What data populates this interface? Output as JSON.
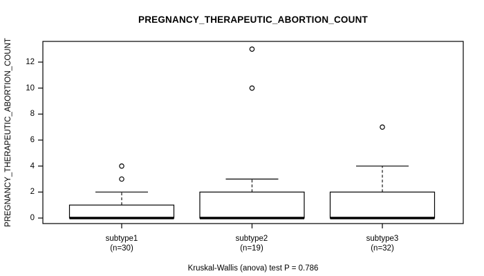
{
  "chart_data": {
    "type": "boxplot",
    "title": "PREGNANCY_THERAPEUTIC_ABORTION_COUNT",
    "ylabel": "PREGNANCY_THERAPEUTIC_ABORTION_COUNT",
    "xlabel": "",
    "caption": "Kruskal-Wallis (anova) test P = 0.786",
    "yticks": [
      0,
      2,
      4,
      6,
      8,
      10,
      12
    ],
    "ylim": [
      -0.5,
      13.5
    ],
    "grid": false,
    "legend": false,
    "groups": [
      {
        "label": "subtype1",
        "n_label": "(n=30)",
        "n": 30,
        "q1": 0,
        "median": 0,
        "q3": 1,
        "whisker_low": 0,
        "whisker_high": 2,
        "outliers": [
          3,
          4
        ]
      },
      {
        "label": "subtype2",
        "n_label": "(n=19)",
        "n": 19,
        "q1": 0,
        "median": 0,
        "q3": 2,
        "whisker_low": 0,
        "whisker_high": 3,
        "outliers": [
          10,
          13
        ]
      },
      {
        "label": "subtype3",
        "n_label": "(n=32)",
        "n": 32,
        "q1": 0,
        "median": 0,
        "q3": 2,
        "whisker_low": 0,
        "whisker_high": 4,
        "outliers": [
          7
        ]
      }
    ],
    "colors": {
      "stroke": "#000000",
      "box_fill": "#ffffff",
      "background": "#ffffff"
    }
  }
}
